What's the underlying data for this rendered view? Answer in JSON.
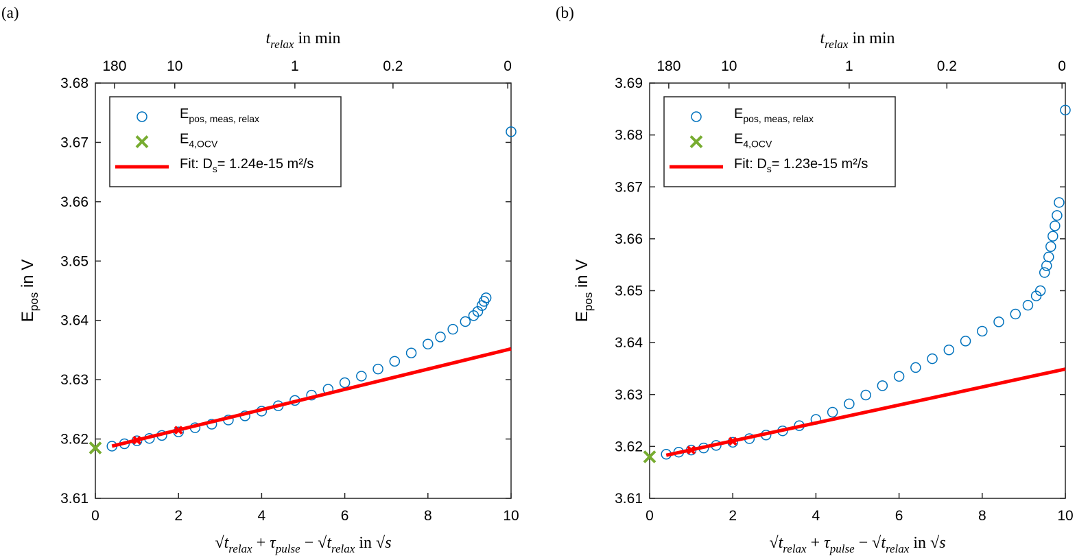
{
  "chart_data": [
    {
      "type": "scatter",
      "panel_label": "(a)",
      "x_label": [
        {
          "text": "√"
        },
        {
          "text": "t",
          "italic": true
        },
        {
          "text": "relax",
          "italic": true,
          "sub": true
        },
        {
          "text": " + "
        },
        {
          "text": "τ",
          "italic": true
        },
        {
          "text": "pulse",
          "italic": true,
          "sub": true
        },
        {
          "text": " − √"
        },
        {
          "text": "t",
          "italic": true
        },
        {
          "text": "relax",
          "italic": true,
          "sub": true
        },
        {
          "text": " in √"
        },
        {
          "text": "s",
          "italic": true
        }
      ],
      "x2_label": [
        {
          "text": "t",
          "italic": true
        },
        {
          "text": "relax",
          "italic": true,
          "sub": true
        },
        {
          "text": " in min"
        }
      ],
      "y_label": [
        {
          "text": "E"
        },
        {
          "text": "pos",
          "sub": true
        },
        {
          "text": " in V"
        }
      ],
      "xlim": [
        0,
        10
      ],
      "xticks": [
        0,
        2,
        4,
        6,
        8,
        10
      ],
      "x2ticks": [
        {
          "value": 0.46,
          "label": "180"
        },
        {
          "value": 1.91,
          "label": "10"
        },
        {
          "value": 4.8,
          "label": "1"
        },
        {
          "value": 7.16,
          "label": "0.2"
        },
        {
          "value": 9.92,
          "label": "0"
        }
      ],
      "ylim": [
        3.61,
        3.68
      ],
      "yticks": [
        3.61,
        3.62,
        3.63,
        3.64,
        3.65,
        3.66,
        3.67,
        3.68
      ],
      "legend": "northwest",
      "series": [
        {
          "name": [
            {
              "text": "E"
            },
            {
              "text": "pos, meas, relax",
              "sub": true
            }
          ],
          "marker": "o",
          "color": "#0072bd",
          "x": [
            0.4,
            0.7,
            1,
            1.3,
            1.6,
            2,
            2.4,
            2.8,
            3.2,
            3.6,
            4,
            4.4,
            4.8,
            5.2,
            5.6,
            6,
            6.4,
            6.8,
            7.2,
            7.6,
            8,
            8.3,
            8.6,
            8.9,
            9.1,
            9.2,
            9.3,
            9.35,
            9.4,
            10
          ],
          "values": [
            3.6188,
            3.6192,
            3.6197,
            3.6201,
            3.6206,
            3.6212,
            3.6219,
            3.6225,
            3.6232,
            3.6239,
            3.6247,
            3.6256,
            3.6265,
            3.6274,
            3.6284,
            3.6295,
            3.6306,
            3.6318,
            3.6331,
            3.6345,
            3.636,
            3.6372,
            3.6385,
            3.6398,
            3.6408,
            3.6415,
            3.6425,
            3.6432,
            3.6438,
            3.6718
          ]
        },
        {
          "name": [
            {
              "text": "E"
            },
            {
              "text": "4,OCV",
              "sub": true
            }
          ],
          "marker": "x",
          "color": "#77ac30",
          "x": [
            0
          ],
          "values": [
            3.6185
          ]
        },
        {
          "name": [
            {
              "text": "Fit: D"
            },
            {
              "text": "s",
              "sub": true
            },
            {
              "text": "= 1.24e-15 m²/s"
            }
          ],
          "marker": "line",
          "color": "#ff0000",
          "x": [
            0.4,
            10
          ],
          "values": [
            3.6188,
            3.6352
          ]
        },
        {
          "marker": "x",
          "color": "#ff0000",
          "x": [
            1,
            2
          ],
          "values": [
            3.6198,
            3.6215
          ]
        }
      ]
    },
    {
      "type": "scatter",
      "panel_label": "(b)",
      "x_label": [
        {
          "text": "√"
        },
        {
          "text": "t",
          "italic": true
        },
        {
          "text": "relax",
          "italic": true,
          "sub": true
        },
        {
          "text": " + "
        },
        {
          "text": "τ",
          "italic": true
        },
        {
          "text": "pulse",
          "italic": true,
          "sub": true
        },
        {
          "text": " − √"
        },
        {
          "text": "t",
          "italic": true
        },
        {
          "text": "relax",
          "italic": true,
          "sub": true
        },
        {
          "text": " in √"
        },
        {
          "text": "s",
          "italic": true
        }
      ],
      "x2_label": [
        {
          "text": "t",
          "italic": true
        },
        {
          "text": "relax",
          "italic": true,
          "sub": true
        },
        {
          "text": " in min"
        }
      ],
      "y_label": [
        {
          "text": "E"
        },
        {
          "text": "pos",
          "sub": true
        },
        {
          "text": " in V"
        }
      ],
      "xlim": [
        0,
        10
      ],
      "xticks": [
        0,
        2,
        4,
        6,
        8,
        10
      ],
      "x2ticks": [
        {
          "value": 0.46,
          "label": "180"
        },
        {
          "value": 1.91,
          "label": "10"
        },
        {
          "value": 4.8,
          "label": "1"
        },
        {
          "value": 7.15,
          "label": "0.2"
        },
        {
          "value": 9.92,
          "label": "0"
        }
      ],
      "ylim": [
        3.61,
        3.69
      ],
      "yticks": [
        3.61,
        3.62,
        3.63,
        3.64,
        3.65,
        3.66,
        3.67,
        3.68,
        3.69
      ],
      "legend": "northwest",
      "series": [
        {
          "name": [
            {
              "text": "E"
            },
            {
              "text": "pos, meas, relax",
              "sub": true
            }
          ],
          "marker": "o",
          "color": "#0072bd",
          "x": [
            0.4,
            0.7,
            1,
            1.3,
            1.6,
            2,
            2.4,
            2.8,
            3.2,
            3.6,
            4,
            4.4,
            4.8,
            5.2,
            5.6,
            6,
            6.4,
            6.8,
            7.2,
            7.6,
            8,
            8.4,
            8.8,
            9.1,
            9.3,
            9.4,
            9.5,
            9.55,
            9.6,
            9.65,
            9.7,
            9.75,
            9.8,
            9.85,
            10
          ],
          "values": [
            3.6185,
            3.6189,
            3.6193,
            3.6197,
            3.6202,
            3.6208,
            3.6215,
            3.6222,
            3.623,
            3.624,
            3.6252,
            3.6266,
            3.6282,
            3.6299,
            3.6317,
            3.6335,
            3.6352,
            3.6369,
            3.6386,
            3.6403,
            3.6422,
            3.644,
            3.6455,
            3.6472,
            3.649,
            3.65,
            3.6535,
            3.6548,
            3.6565,
            3.6585,
            3.6605,
            3.6625,
            3.6645,
            3.667,
            3.6848
          ]
        },
        {
          "name": [
            {
              "text": "E"
            },
            {
              "text": "4,OCV",
              "sub": true
            }
          ],
          "marker": "x",
          "color": "#77ac30",
          "x": [
            0
          ],
          "values": [
            3.618
          ]
        },
        {
          "name": [
            {
              "text": "Fit: D"
            },
            {
              "text": "s",
              "sub": true
            },
            {
              "text": "= 1.23e-15 m²/s"
            }
          ],
          "marker": "line",
          "color": "#ff0000",
          "x": [
            0.4,
            10
          ],
          "values": [
            3.6183,
            3.6349
          ]
        },
        {
          "marker": "x",
          "color": "#ff0000",
          "x": [
            1,
            2
          ],
          "values": [
            3.6193,
            3.621
          ]
        }
      ]
    }
  ]
}
